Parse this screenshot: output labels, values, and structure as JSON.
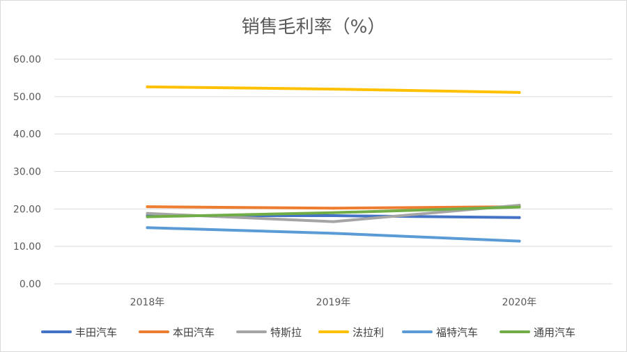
{
  "chart_data": {
    "type": "line",
    "title": "销售毛利率（%）",
    "xlabel": "",
    "ylabel": "",
    "categories": [
      "2018年",
      "2019年",
      "2020年"
    ],
    "ylim": [
      0,
      60
    ],
    "yticks": [
      "0.00",
      "10.00",
      "20.00",
      "30.00",
      "40.00",
      "50.00",
      "60.00"
    ],
    "grid": true,
    "legend": "bottom",
    "series": [
      {
        "name": "丰田汽车",
        "color": "#4472C4",
        "values": [
          18.2,
          18.2,
          17.7
        ]
      },
      {
        "name": "本田汽车",
        "color": "#ED7D31",
        "values": [
          20.6,
          20.2,
          20.6
        ]
      },
      {
        "name": "特斯拉",
        "color": "#A5A5A5",
        "values": [
          18.8,
          16.6,
          21.0
        ]
      },
      {
        "name": "法拉利",
        "color": "#FFC000",
        "values": [
          52.6,
          52.0,
          51.1
        ]
      },
      {
        "name": "福特汽车",
        "color": "#5B9BD5",
        "values": [
          15.0,
          13.5,
          11.4
        ]
      },
      {
        "name": "通用汽车",
        "color": "#70AD47",
        "values": [
          17.9,
          19.0,
          20.5
        ]
      }
    ]
  }
}
